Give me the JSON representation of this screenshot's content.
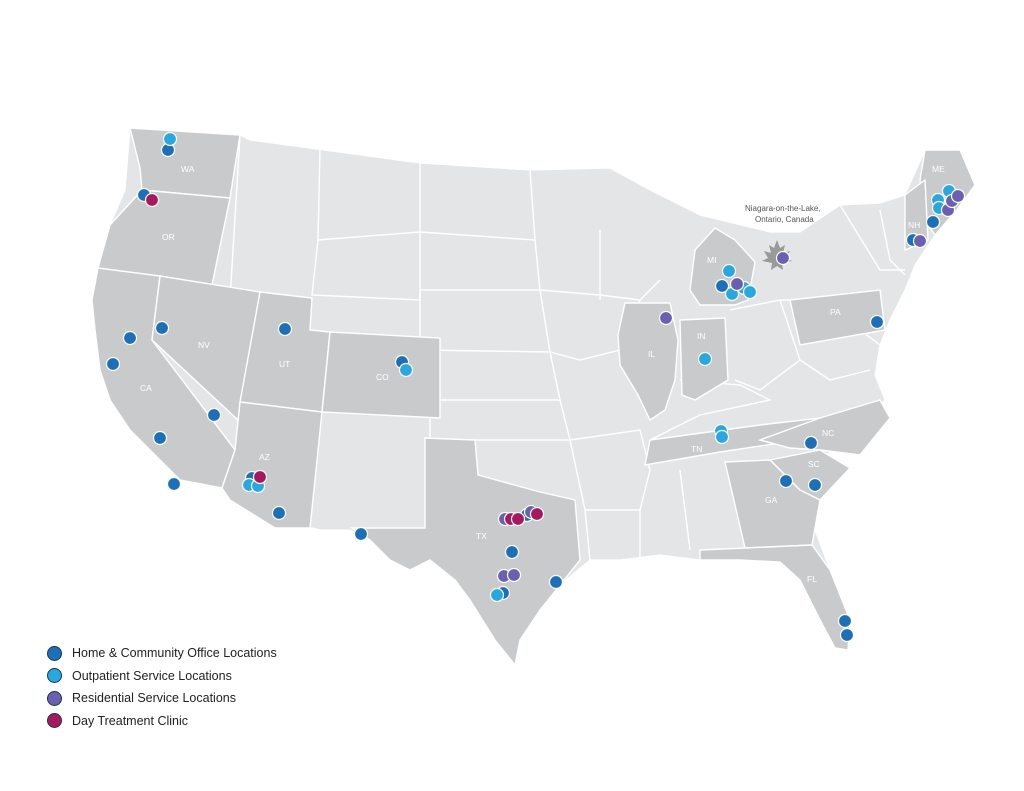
{
  "colors": {
    "background": "#ffffff",
    "unserved_state": "#e4e5e7",
    "served_state": "#c9cacc",
    "state_border": "#ffffff",
    "marker_outline": "#ffffff"
  },
  "state_labels": [
    "WA",
    "OR",
    "CA",
    "NV",
    "UT",
    "AZ",
    "CO",
    "TX",
    "MI",
    "IL",
    "IN",
    "TN",
    "PA",
    "NC",
    "SC",
    "GA",
    "FL",
    "ME",
    "NH"
  ],
  "canada_note": {
    "line1": "Niagara-on-the-Lake,",
    "line2": "Ontario, Canada",
    "icon": "maple-leaf-icon"
  },
  "legend": [
    {
      "label": "Home & Community Office Locations",
      "color": "#1d6fb8"
    },
    {
      "label": "Outpatient Service Locations",
      "color": "#29a8e0"
    },
    {
      "label": "Residential Service Locations",
      "color": "#6a5fb0"
    },
    {
      "label": "Day Treatment Clinic",
      "color": "#a6195e"
    }
  ]
}
